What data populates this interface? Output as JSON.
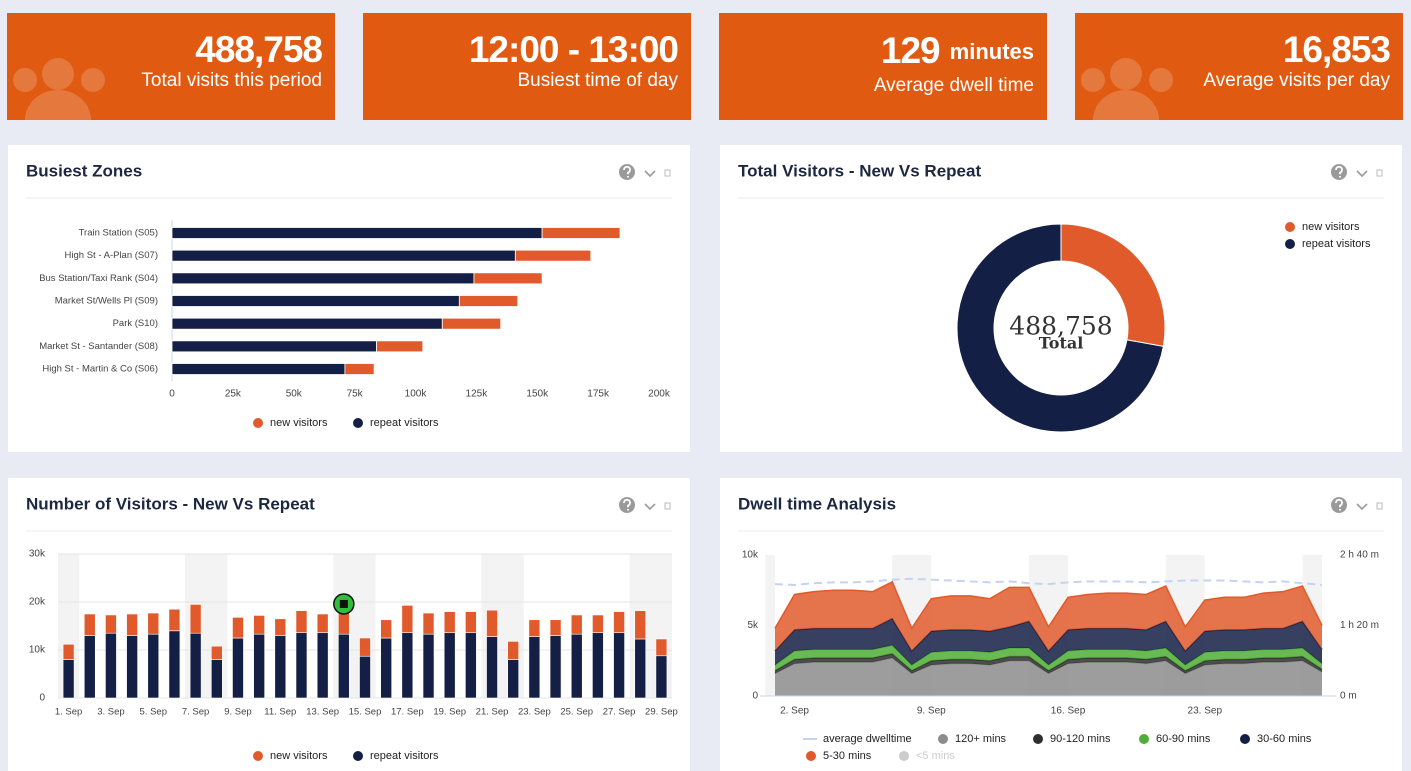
{
  "kpis": [
    {
      "value": "488,758",
      "label": "Total visits this period"
    },
    {
      "value": "12:00 - 13:00",
      "label": "Busiest time of day"
    },
    {
      "value": "129",
      "unit": "minutes",
      "label": "Average dwell time"
    },
    {
      "value": "16,853",
      "label": "Average visits per day"
    }
  ],
  "chart_data": [
    {
      "type": "hbar",
      "title": "Busiest Zones",
      "stacked": true,
      "categories": [
        "Train Station (S05)",
        "High St - A-Plan (S07)",
        "Bus Station/Taxi Rank (S04)",
        "Market St/Wells Pl (S09)",
        "Park (S10)",
        "Market St - Santander (S08)",
        "High St - Martin & Co (S06)"
      ],
      "series": [
        {
          "name": "new visitors",
          "color": "#e05a2b",
          "values": [
            32000,
            31000,
            28000,
            24000,
            24000,
            19000,
            12000
          ]
        },
        {
          "name": "repeat visitors",
          "color": "#141f45",
          "values": [
            152000,
            141000,
            124000,
            118000,
            111000,
            84000,
            71000
          ]
        }
      ],
      "xlim": [
        0,
        200000
      ],
      "xticks": [
        0,
        {
          "value": 25000,
          "label": "25k"
        },
        {
          "value": 50000,
          "label": "50k"
        },
        {
          "value": 75000,
          "label": "75k"
        },
        {
          "value": 100000,
          "label": "100k"
        },
        {
          "value": 125000,
          "label": "125k"
        },
        {
          "value": 150000,
          "label": "150k"
        },
        {
          "value": 175000,
          "label": "175k"
        },
        {
          "value": 200000,
          "label": "200k"
        }
      ]
    },
    {
      "type": "donut",
      "title": "Total Visitors - New Vs Repeat",
      "categories": [
        "new visitors",
        "repeat visitors"
      ],
      "values": [
        136000,
        352758
      ],
      "colors": [
        "#e05a2b",
        "#141f45"
      ],
      "center_value": "488,758",
      "center_label": "Total"
    },
    {
      "type": "bar",
      "title": "Number of Visitors - New Vs Repeat",
      "stacked": true,
      "categories": [
        "1. Sep",
        null,
        "3. Sep",
        null,
        "5. Sep",
        null,
        "7. Sep",
        null,
        "9. Sep",
        null,
        "11. Sep",
        null,
        "13. Sep",
        null,
        "15. Sep",
        null,
        "17. Sep",
        null,
        "19. Sep",
        null,
        "21. Sep",
        null,
        "23. Sep",
        null,
        "25. Sep",
        null,
        "27. Sep",
        null,
        "29. Sep"
      ],
      "series": [
        {
          "name": "new visitors",
          "color": "#e05a2b",
          "values": [
            3200,
            4500,
            3800,
            4500,
            4400,
            4500,
            6000,
            2800,
            4300,
            3900,
            3500,
            4600,
            3900,
            6500,
            3800,
            3800,
            5700,
            4400,
            4400,
            4400,
            5500,
            3800,
            3500,
            3300,
            4000,
            3700,
            4400,
            5900,
            3500
          ]
        },
        {
          "name": "repeat visitors",
          "color": "#141f45",
          "values": [
            8000,
            13000,
            13500,
            13000,
            13300,
            14000,
            13500,
            8000,
            12500,
            13300,
            13000,
            13600,
            13600,
            13300,
            8700,
            12500,
            13600,
            13300,
            13600,
            13600,
            12800,
            8000,
            12800,
            13000,
            13300,
            13600,
            13600,
            12300,
            8800
          ]
        }
      ],
      "ylim": [
        0,
        30000
      ],
      "yticks": [
        0,
        {
          "value": 10000,
          "label": "10k"
        },
        {
          "value": 20000,
          "label": "20k"
        },
        {
          "value": 30000,
          "label": "30k"
        }
      ]
    },
    {
      "type": "area",
      "title": "Dwell time Analysis",
      "stacked": true,
      "categories": [
        null,
        "2. Sep",
        null,
        null,
        null,
        null,
        null,
        null,
        "9. Sep",
        null,
        null,
        null,
        null,
        null,
        null,
        "16. Sep",
        null,
        null,
        null,
        null,
        null,
        null,
        "23. Sep",
        null,
        null,
        null,
        null,
        null,
        null
      ],
      "series": [
        {
          "name": "average dwelltime",
          "type": "line",
          "axis": "y2",
          "color": "#c5d3f0",
          "values": [
            127,
            126,
            128,
            129,
            129,
            130,
            132,
            133,
            132,
            131,
            130,
            129,
            130,
            128,
            127,
            129,
            130,
            130,
            130,
            129,
            130,
            131,
            131,
            131,
            130,
            129,
            130,
            128,
            126
          ]
        },
        {
          "name": "120+ mins",
          "color": "#8c8c8c",
          "values": [
            1600,
            2300,
            2400,
            2400,
            2400,
            2400,
            2700,
            1600,
            2200,
            2300,
            2300,
            2200,
            2500,
            2500,
            1600,
            2300,
            2400,
            2400,
            2400,
            2300,
            2500,
            1600,
            2200,
            2300,
            2300,
            2400,
            2400,
            2500,
            1700
          ]
        },
        {
          "name": "90-120 mins",
          "color": "#2e2e2e",
          "values": [
            200,
            300,
            300,
            300,
            300,
            300,
            300,
            200,
            300,
            300,
            300,
            300,
            300,
            300,
            200,
            300,
            300,
            300,
            300,
            300,
            300,
            200,
            300,
            300,
            300,
            300,
            300,
            300,
            200
          ]
        },
        {
          "name": "60-90 mins",
          "color": "#4fae35",
          "values": [
            400,
            600,
            600,
            600,
            600,
            600,
            600,
            400,
            600,
            600,
            600,
            600,
            600,
            600,
            400,
            600,
            600,
            600,
            600,
            600,
            600,
            400,
            600,
            600,
            600,
            600,
            600,
            600,
            400
          ]
        },
        {
          "name": "30-60 mins",
          "color": "#141f45",
          "values": [
            1000,
            1500,
            1500,
            1500,
            1500,
            1500,
            1900,
            1000,
            1500,
            1500,
            1500,
            1500,
            1500,
            1900,
            1000,
            1500,
            1500,
            1500,
            1500,
            1500,
            1900,
            1000,
            1500,
            1500,
            1500,
            1500,
            1500,
            1900,
            1000
          ]
        },
        {
          "name": "5-30 mins",
          "color": "#e05a2b",
          "values": [
            1600,
            2500,
            2600,
            2700,
            2700,
            2600,
            2600,
            1600,
            2300,
            2400,
            2400,
            2300,
            2800,
            2400,
            1700,
            2300,
            2400,
            2500,
            2500,
            2500,
            2500,
            1700,
            2200,
            2300,
            2300,
            2500,
            2600,
            2500,
            1700
          ]
        },
        {
          "name": "<5 mins",
          "color": "#cccccc",
          "visible": false
        }
      ],
      "ylim": [
        0,
        10000
      ],
      "yticks": [
        0,
        {
          "value": 5000,
          "label": "5k"
        },
        {
          "value": 10000,
          "label": "10k"
        }
      ],
      "y2lim": [
        0,
        160
      ],
      "y2ticks": [
        {
          "value": 0,
          "label": "0 m"
        },
        {
          "value": 80,
          "label": "1 h 20 m"
        },
        {
          "value": 160,
          "label": "2 h 40 m"
        }
      ]
    }
  ]
}
